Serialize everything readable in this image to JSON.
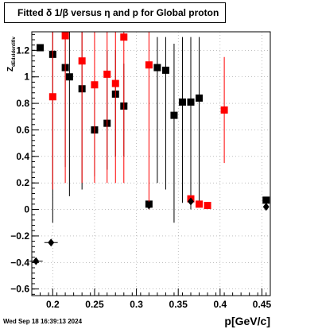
{
  "chart_data": {
    "type": "scatter",
    "title": "Fitted δ 1/β versus η and p for Global proton",
    "xlabel": "p[GeV/c]",
    "ylabel": "Z",
    "ylabel_sub": "dEdxIdentifiv",
    "xlim": [
      0.175,
      0.46
    ],
    "ylim": [
      -0.65,
      1.34
    ],
    "x_ticks": [
      0.2,
      0.25,
      0.3,
      0.35,
      0.4,
      0.45
    ],
    "x_tick_labels": [
      "0.2",
      "0.25",
      "0.3",
      "0.35",
      "0.4",
      "0.45"
    ],
    "y_ticks": [
      -0.6,
      -0.4,
      -0.2,
      0,
      0.2,
      0.4,
      0.6,
      0.8,
      1.0,
      1.2
    ],
    "y_tick_labels": [
      "−0.6",
      "−0.4",
      "−0.2",
      "0",
      "0.2",
      "0.4",
      "0.6",
      "0.8",
      "1",
      "1.2"
    ],
    "grid": true,
    "series": [
      {
        "color": "#000000",
        "marker": "square",
        "points": [
          {
            "x": 0.185,
            "y": 1.22,
            "ylo": 1.22,
            "yhi": 1.22
          },
          {
            "x": 0.2,
            "y": 1.17,
            "ylo": -0.1,
            "yhi": 1.34
          },
          {
            "x": 0.215,
            "y": 1.07,
            "ylo": 0.32,
            "yhi": 1.34
          },
          {
            "x": 0.22,
            "y": 1.0,
            "ylo": 0.1,
            "yhi": 1.34
          },
          {
            "x": 0.235,
            "y": 0.91,
            "ylo": 0.15,
            "yhi": 1.34
          },
          {
            "x": 0.25,
            "y": 0.6,
            "ylo": 0.25,
            "yhi": 0.95
          },
          {
            "x": 0.265,
            "y": 0.65,
            "ylo": 0.3,
            "yhi": 1.2
          },
          {
            "x": 0.275,
            "y": 0.87,
            "ylo": 0.4,
            "yhi": 1.2
          },
          {
            "x": 0.285,
            "y": 0.78,
            "ylo": 0.4,
            "yhi": 1.1
          },
          {
            "x": 0.315,
            "y": 0.04,
            "ylo": 0.02,
            "yhi": 0.06
          },
          {
            "x": 0.325,
            "y": 1.07,
            "ylo": 0.2,
            "yhi": 1.3
          },
          {
            "x": 0.335,
            "y": 1.05,
            "ylo": 0.15,
            "yhi": 1.3
          },
          {
            "x": 0.345,
            "y": 0.71,
            "ylo": -0.1,
            "yhi": 1.25
          },
          {
            "x": 0.355,
            "y": 0.81,
            "ylo": 0.05,
            "yhi": 1.3
          },
          {
            "x": 0.365,
            "y": 0.81,
            "ylo": 0.0,
            "yhi": 1.3
          },
          {
            "x": 0.375,
            "y": 0.84,
            "ylo": 0.05,
            "yhi": 1.3
          },
          {
            "x": 0.455,
            "y": 0.07,
            "ylo": 0.07,
            "yhi": 0.07
          }
        ]
      },
      {
        "color": "#ff0000",
        "marker": "square",
        "points": [
          {
            "x": 0.2,
            "y": 0.85,
            "ylo": 0.15,
            "yhi": 1.34
          },
          {
            "x": 0.215,
            "y": 1.31,
            "ylo": 0.2,
            "yhi": 1.34
          },
          {
            "x": 0.235,
            "y": 1.12,
            "ylo": 0.2,
            "yhi": 1.34
          },
          {
            "x": 0.25,
            "y": 0.94,
            "ylo": 0.2,
            "yhi": 1.34
          },
          {
            "x": 0.265,
            "y": 1.02,
            "ylo": 0.2,
            "yhi": 1.34
          },
          {
            "x": 0.275,
            "y": 0.95,
            "ylo": 0.2,
            "yhi": 1.34
          },
          {
            "x": 0.285,
            "y": 1.3,
            "ylo": 0.2,
            "yhi": 1.34
          },
          {
            "x": 0.315,
            "y": 1.09,
            "ylo": 0.0,
            "yhi": 1.34
          },
          {
            "x": 0.365,
            "y": 0.08,
            "ylo": 0.04,
            "yhi": 0.1
          },
          {
            "x": 0.375,
            "y": 0.04,
            "ylo": 0.02,
            "yhi": 0.06
          },
          {
            "x": 0.385,
            "y": 0.03,
            "ylo": 0.02,
            "yhi": 0.05
          },
          {
            "x": 0.405,
            "y": 0.75,
            "ylo": 0.35,
            "yhi": 1.15
          }
        ]
      },
      {
        "color": "#000000",
        "marker": "diamond",
        "points": [
          {
            "x": 0.18,
            "y": -0.39,
            "xerr": 0.008
          },
          {
            "x": 0.198,
            "y": -0.25,
            "xerr": 0.008
          },
          {
            "x": 0.315,
            "y": 0.03,
            "xerr": 0.003
          },
          {
            "x": 0.365,
            "y": 0.06,
            "xerr": 0.003
          },
          {
            "x": 0.455,
            "y": 0.02,
            "xerr": 0.003
          }
        ]
      }
    ]
  },
  "footer": "Wed Sep 18 16:39:13 2024"
}
